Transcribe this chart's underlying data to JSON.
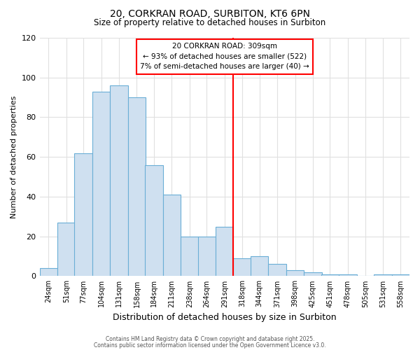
{
  "title_line1": "20, CORKRAN ROAD, SURBITON, KT6 6PN",
  "title_line2": "Size of property relative to detached houses in Surbiton",
  "xlabel": "Distribution of detached houses by size in Surbiton",
  "ylabel": "Number of detached properties",
  "bar_left_edges": [
    24,
    51,
    77,
    104,
    131,
    158,
    184,
    211,
    238,
    264,
    291,
    318,
    344,
    371,
    398,
    425,
    451,
    478,
    505,
    531,
    558
  ],
  "bar_heights": [
    4,
    27,
    62,
    93,
    96,
    90,
    56,
    41,
    20,
    20,
    25,
    9,
    10,
    6,
    3,
    2,
    1,
    1,
    0,
    1,
    1
  ],
  "bin_width": 27,
  "bar_color": "#cfe0f0",
  "bar_edgecolor": "#6aaed6",
  "red_line_x": 318,
  "ylim": [
    0,
    120
  ],
  "yticks": [
    0,
    20,
    40,
    60,
    80,
    100,
    120
  ],
  "xtick_labels": [
    "24sqm",
    "51sqm",
    "77sqm",
    "104sqm",
    "131sqm",
    "158sqm",
    "184sqm",
    "211sqm",
    "238sqm",
    "264sqm",
    "291sqm",
    "318sqm",
    "344sqm",
    "371sqm",
    "398sqm",
    "425sqm",
    "451sqm",
    "478sqm",
    "505sqm",
    "531sqm",
    "558sqm"
  ],
  "annotation_title": "20 CORKRAN ROAD: 309sqm",
  "annotation_line2": "← 93% of detached houses are smaller (522)",
  "annotation_line3": "7% of semi-detached houses are larger (40) →",
  "footer_line1": "Contains HM Land Registry data © Crown copyright and database right 2025.",
  "footer_line2": "Contains public sector information licensed under the Open Government Licence v3.0.",
  "background_color": "#ffffff",
  "grid_color": "#e0e0e0",
  "figsize": [
    6.0,
    5.0
  ],
  "dpi": 100
}
